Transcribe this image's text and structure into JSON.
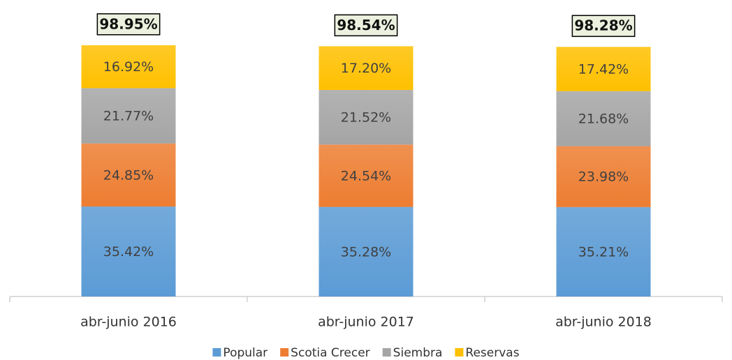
{
  "chart_data": {
    "type": "stacked-bar",
    "categories": [
      "abr-junio 2016",
      "abr-junio 2017",
      "abr-junio 2018"
    ],
    "series": [
      {
        "name": "Popular",
        "color": "#5b9bd5",
        "values": [
          35.42,
          35.28,
          35.21
        ],
        "value_labels": [
          "35.42%",
          "35.28%",
          "35.21%"
        ]
      },
      {
        "name": "Scotia Crecer",
        "color": "#ed7d31",
        "values": [
          24.85,
          24.54,
          23.98
        ],
        "value_labels": [
          "24.85%",
          "24.54%",
          "23.98%"
        ]
      },
      {
        "name": "Siembra",
        "color": "#a5a5a5",
        "values": [
          21.77,
          21.52,
          21.68
        ],
        "value_labels": [
          "21.77%",
          "21.52%",
          "21.68%"
        ]
      },
      {
        "name": "Reservas",
        "color": "#ffc000",
        "values": [
          16.92,
          17.2,
          17.42
        ],
        "value_labels": [
          "16.92%",
          "17.20%",
          "17.42%"
        ]
      }
    ],
    "totals": [
      98.95,
      98.54,
      98.28
    ],
    "total_labels": [
      "98.95%",
      "98.54%",
      "98.28%"
    ],
    "ylim": [
      0,
      100
    ],
    "legend": "bottom"
  }
}
